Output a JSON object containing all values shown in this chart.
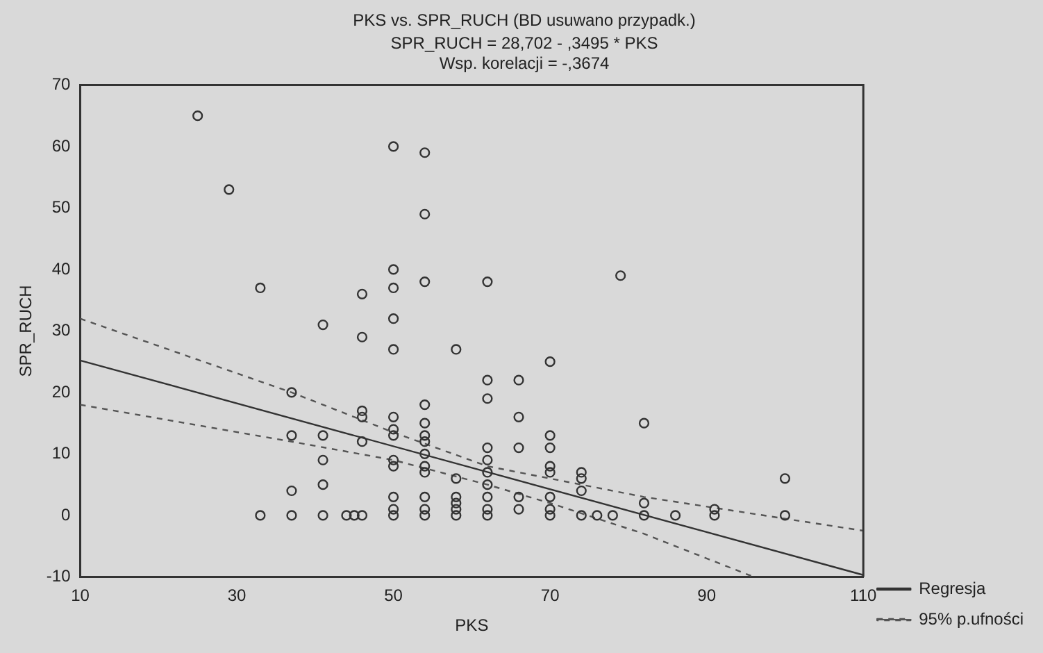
{
  "chart_data": {
    "type": "scatter",
    "title": "PKS vs. SPR_RUCH (BD usuwano przypadk.)",
    "subtitle": "SPR_RUCH = 28,702 - ,3495 * PKS",
    "annotations": [
      "Wsp. korelacji = -,3674"
    ],
    "xlabel": "PKS",
    "ylabel": "SPR_RUCH",
    "xlim": [
      10,
      110
    ],
    "xticks": [
      10,
      30,
      50,
      70,
      90,
      110
    ],
    "ylim": [
      -10,
      70
    ],
    "yticks": [
      -10,
      0,
      10,
      20,
      30,
      40,
      50,
      60,
      70
    ],
    "grid": false,
    "legend": "bottom right",
    "marker": "circle",
    "series": [
      {
        "color": "#333333",
        "x": [
          25,
          29,
          33,
          33,
          37,
          37,
          37,
          37,
          41,
          41,
          41,
          41,
          41,
          44,
          45,
          46,
          46,
          46,
          46,
          46,
          46,
          50,
          50,
          50,
          50,
          50,
          50,
          50,
          50,
          50,
          50,
          50,
          50,
          50,
          54,
          54,
          54,
          54,
          54,
          54,
          54,
          54,
          54,
          54,
          54,
          54,
          54,
          58,
          58,
          58,
          58,
          58,
          58,
          62,
          62,
          62,
          62,
          62,
          62,
          62,
          62,
          62,
          62,
          66,
          66,
          66,
          66,
          66,
          70,
          70,
          70,
          70,
          70,
          70,
          70,
          70,
          74,
          74,
          74,
          74,
          76,
          78,
          79,
          82,
          82,
          82,
          86,
          91,
          91,
          100,
          100
        ],
        "values": [
          65,
          53,
          37,
          0,
          20,
          13,
          4,
          0,
          31,
          13,
          9,
          5,
          0,
          0,
          0,
          36,
          29,
          17,
          16,
          12,
          0,
          60,
          40,
          37,
          32,
          27,
          16,
          14,
          13,
          9,
          8,
          3,
          1,
          0,
          59,
          49,
          38,
          18,
          15,
          13,
          12,
          10,
          8,
          7,
          3,
          1,
          0,
          27,
          6,
          3,
          2,
          1,
          0,
          38,
          22,
          19,
          11,
          9,
          7,
          5,
          3,
          1,
          0,
          22,
          16,
          11,
          3,
          1,
          25,
          13,
          11,
          8,
          7,
          3,
          1,
          0,
          7,
          6,
          4,
          0,
          0,
          0,
          39,
          15,
          2,
          0,
          0,
          1,
          0,
          6,
          0
        ]
      },
      {
        "type": "line",
        "name": "Regresja",
        "color": "#333333",
        "line_style": "solid",
        "marker": "none",
        "x": [
          10,
          110
        ],
        "values": [
          25.2,
          -9.7
        ]
      },
      {
        "type": "line",
        "name": "95% p.ufności",
        "color": "#555555",
        "line_style": "dashed",
        "marker": "none",
        "x": [
          10,
          37,
          50,
          62,
          82,
          110
        ],
        "values": [
          32,
          20,
          13.5,
          8,
          3,
          -2.5
        ]
      },
      {
        "type": "line",
        "color": "#555555",
        "line_style": "dashed",
        "marker": "none",
        "x": [
          10,
          37,
          50,
          62,
          70,
          82,
          96
        ],
        "values": [
          18,
          12,
          9,
          5,
          2,
          -3,
          -10
        ]
      }
    ]
  }
}
